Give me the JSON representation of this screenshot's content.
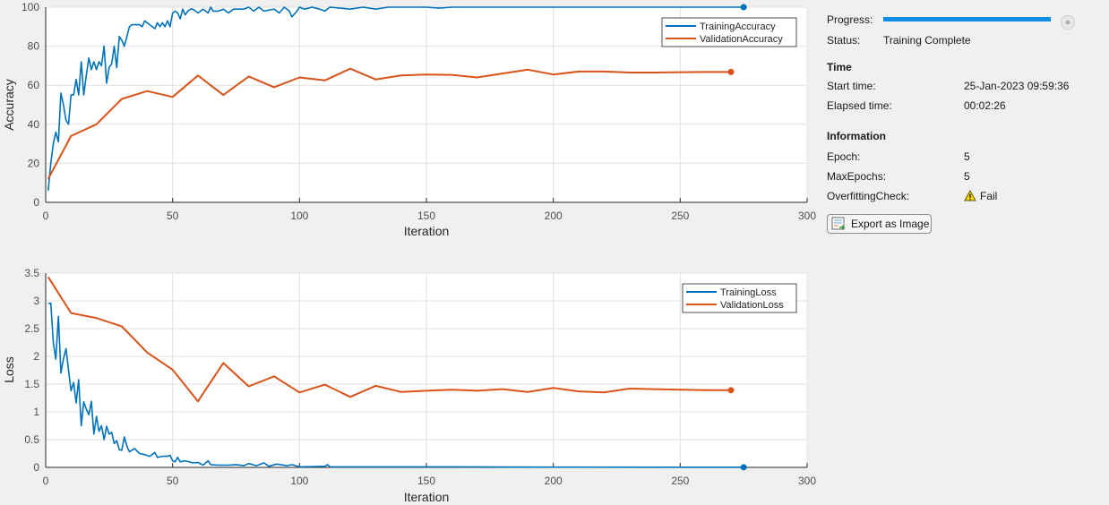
{
  "panel": {
    "progress_label": "Progress:",
    "progress_value": 1.0,
    "status_label": "Status:",
    "status_value": "Training Complete",
    "time_heading": "Time",
    "start_time_label": "Start time:",
    "start_time_value": "25-Jan-2023 09:59:36",
    "elapsed_label": "Elapsed time:",
    "elapsed_value": "00:02:26",
    "info_heading": "Information",
    "epoch_label": "Epoch:",
    "epoch_value": "5",
    "maxepochs_label": "MaxEpochs:",
    "maxepochs_value": "5",
    "overfit_label": "OverfittingCheck:",
    "overfit_value": "Fail",
    "export_label": "Export as Image"
  },
  "colors": {
    "training": "#0072bd",
    "validation": "#d95319",
    "progress": "#0c8ce9"
  },
  "chart_data": [
    {
      "type": "line",
      "xlabel": "Iteration",
      "ylabel": "Accuracy",
      "xlim": [
        0,
        300
      ],
      "ylim": [
        0,
        100
      ],
      "xticks": [
        0,
        50,
        100,
        150,
        200,
        250,
        300
      ],
      "yticks": [
        0,
        20,
        40,
        60,
        80,
        100
      ],
      "grid": true,
      "legend": "top-right",
      "series": [
        {
          "name": "TrainingAccuracy",
          "x": [
            1,
            2,
            3,
            4,
            5,
            6,
            7,
            8,
            9,
            10,
            11,
            12,
            13,
            14,
            15,
            16,
            17,
            18,
            19,
            20,
            21,
            22,
            23,
            24,
            25,
            26,
            27,
            28,
            29,
            30,
            31,
            32,
            33,
            34,
            35,
            36,
            37,
            38,
            39,
            40,
            41,
            42,
            43,
            44,
            45,
            46,
            47,
            48,
            49,
            50,
            51,
            52,
            53,
            54,
            55,
            56,
            57,
            58,
            59,
            60,
            62,
            64,
            65,
            66,
            68,
            70,
            72,
            74,
            78,
            80,
            82,
            84,
            86,
            90,
            92,
            94,
            96,
            97,
            99,
            100,
            102,
            105,
            108,
            110,
            112,
            120,
            125,
            130,
            135,
            150,
            155,
            160,
            275
          ],
          "y": [
            6,
            20,
            30,
            36,
            31,
            56,
            50,
            42,
            40,
            55,
            55,
            63,
            55,
            72,
            55,
            65,
            74,
            68,
            72,
            68,
            72,
            70,
            80,
            61,
            69,
            71,
            80,
            69,
            85,
            83,
            80,
            85,
            90,
            91,
            91,
            91,
            91,
            90,
            93,
            92,
            91,
            90,
            89,
            92,
            90,
            92,
            90,
            93,
            90,
            97,
            98,
            97,
            94,
            99,
            96,
            98,
            99,
            99,
            98,
            97,
            99,
            97,
            100,
            98,
            98,
            99,
            97,
            99,
            99,
            100,
            98,
            100,
            98,
            99,
            97,
            100,
            98,
            95,
            98,
            100,
            99,
            100,
            99,
            98,
            100,
            99,
            100,
            99,
            100,
            100,
            99.5,
            100,
            100
          ]
        },
        {
          "name": "ValidationAccuracy",
          "x": [
            1,
            10,
            20,
            30,
            40,
            50,
            60,
            70,
            80,
            90,
            100,
            110,
            120,
            130,
            140,
            150,
            160,
            170,
            180,
            190,
            200,
            210,
            220,
            230,
            240,
            250,
            260,
            270
          ],
          "y": [
            12,
            34,
            40,
            53,
            57,
            54,
            65,
            55,
            64.5,
            59,
            64,
            62.5,
            68.5,
            63,
            65,
            65.5,
            65.3,
            64,
            66,
            68,
            65.5,
            67,
            67,
            66.5,
            66.5,
            66.7,
            66.8,
            66.8
          ]
        }
      ]
    },
    {
      "type": "line",
      "xlabel": "Iteration",
      "ylabel": "Loss",
      "xlim": [
        0,
        300
      ],
      "ylim": [
        0,
        3.5
      ],
      "xticks": [
        0,
        50,
        100,
        150,
        200,
        250,
        300
      ],
      "yticks": [
        0,
        0.5,
        1,
        1.5,
        2,
        2.5,
        3,
        3.5
      ],
      "grid": true,
      "legend": "top-right",
      "series": [
        {
          "name": "TrainingLoss",
          "x": [
            1,
            2,
            3,
            4,
            5,
            6,
            7,
            8,
            9,
            10,
            11,
            12,
            13,
            14,
            15,
            16,
            17,
            18,
            19,
            20,
            21,
            22,
            23,
            24,
            25,
            26,
            27,
            28,
            29,
            30,
            31,
            32,
            33,
            35,
            37,
            39,
            41,
            43,
            44,
            46,
            48,
            49,
            50,
            51,
            52,
            53,
            55,
            58,
            60,
            62,
            64,
            65,
            68,
            72,
            75,
            78,
            80,
            83,
            86,
            88,
            91,
            95,
            97,
            100,
            110,
            111,
            112,
            130,
            160,
            200,
            275
          ],
          "y": [
            2.95,
            2.96,
            2.25,
            1.95,
            2.72,
            1.7,
            1.95,
            2.14,
            1.75,
            1.38,
            1.53,
            1.16,
            1.58,
            0.75,
            1.18,
            1.05,
            0.95,
            1.19,
            0.6,
            0.92,
            0.65,
            0.75,
            0.5,
            0.74,
            0.6,
            0.63,
            0.43,
            0.48,
            0.32,
            0.31,
            0.55,
            0.38,
            0.28,
            0.34,
            0.25,
            0.23,
            0.2,
            0.27,
            0.18,
            0.2,
            0.2,
            0.22,
            0.12,
            0.1,
            0.18,
            0.1,
            0.12,
            0.08,
            0.09,
            0.04,
            0.12,
            0.05,
            0.04,
            0.04,
            0.05,
            0.03,
            0.07,
            0.03,
            0.08,
            0.02,
            0.06,
            0.03,
            0.05,
            0.01,
            0.02,
            0.05,
            0.01,
            0.01,
            0.01,
            0.005,
            0.003
          ]
        },
        {
          "name": "ValidationLoss",
          "x": [
            1,
            10,
            20,
            30,
            40,
            50,
            60,
            70,
            80,
            90,
            100,
            110,
            120,
            130,
            140,
            150,
            160,
            170,
            180,
            190,
            200,
            210,
            220,
            230,
            240,
            250,
            260,
            270
          ],
          "y": [
            3.43,
            2.78,
            2.69,
            2.54,
            2.07,
            1.76,
            1.19,
            1.88,
            1.46,
            1.64,
            1.35,
            1.49,
            1.27,
            1.47,
            1.36,
            1.38,
            1.4,
            1.38,
            1.41,
            1.36,
            1.43,
            1.37,
            1.35,
            1.42,
            1.41,
            1.4,
            1.39,
            1.39
          ]
        }
      ]
    }
  ]
}
